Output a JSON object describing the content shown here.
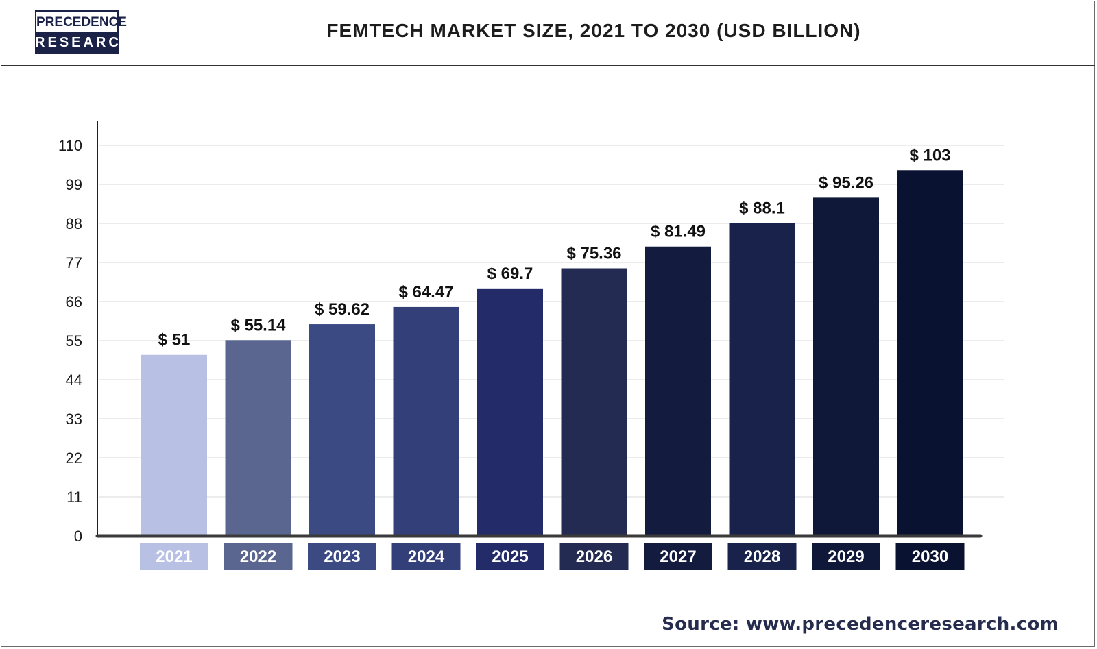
{
  "header": {
    "logo_top": "PRECEDENCE",
    "logo_bottom": "RESEARCH",
    "title": "FEMTECH MARKET SIZE, 2021 TO 2030 (USD BILLION)"
  },
  "source": "Source: www.precedenceresearch.com",
  "colors": {
    "brand_navy": "#1b2248",
    "bars": [
      "#b8c1e4",
      "#5a6590",
      "#3c4a84",
      "#333f78",
      "#232c68",
      "#232b52",
      "#131b3e",
      "#18224a",
      "#0f1838",
      "#0a1232"
    ]
  },
  "chart_data": {
    "type": "bar",
    "title": "FEMTECH MARKET SIZE, 2021 TO 2030 (USD BILLION)",
    "categories": [
      "2021",
      "2022",
      "2023",
      "2024",
      "2025",
      "2026",
      "2027",
      "2028",
      "2029",
      "2030"
    ],
    "values": [
      51,
      55.14,
      59.62,
      64.47,
      69.7,
      75.36,
      81.49,
      88.1,
      95.26,
      103
    ],
    "value_labels": [
      "$ 51",
      "$ 55.14",
      "$ 59.62",
      "$ 64.47",
      "$ 69.7",
      "$ 75.36",
      "$ 81.49",
      "$ 88.1",
      "$ 95.26",
      "$ 103"
    ],
    "yticks": [
      0,
      11,
      22,
      33,
      44,
      55,
      66,
      77,
      88,
      99,
      110
    ],
    "ylim": [
      0,
      110
    ],
    "grid": true,
    "legend": "none",
    "xlabel": "",
    "ylabel": ""
  }
}
